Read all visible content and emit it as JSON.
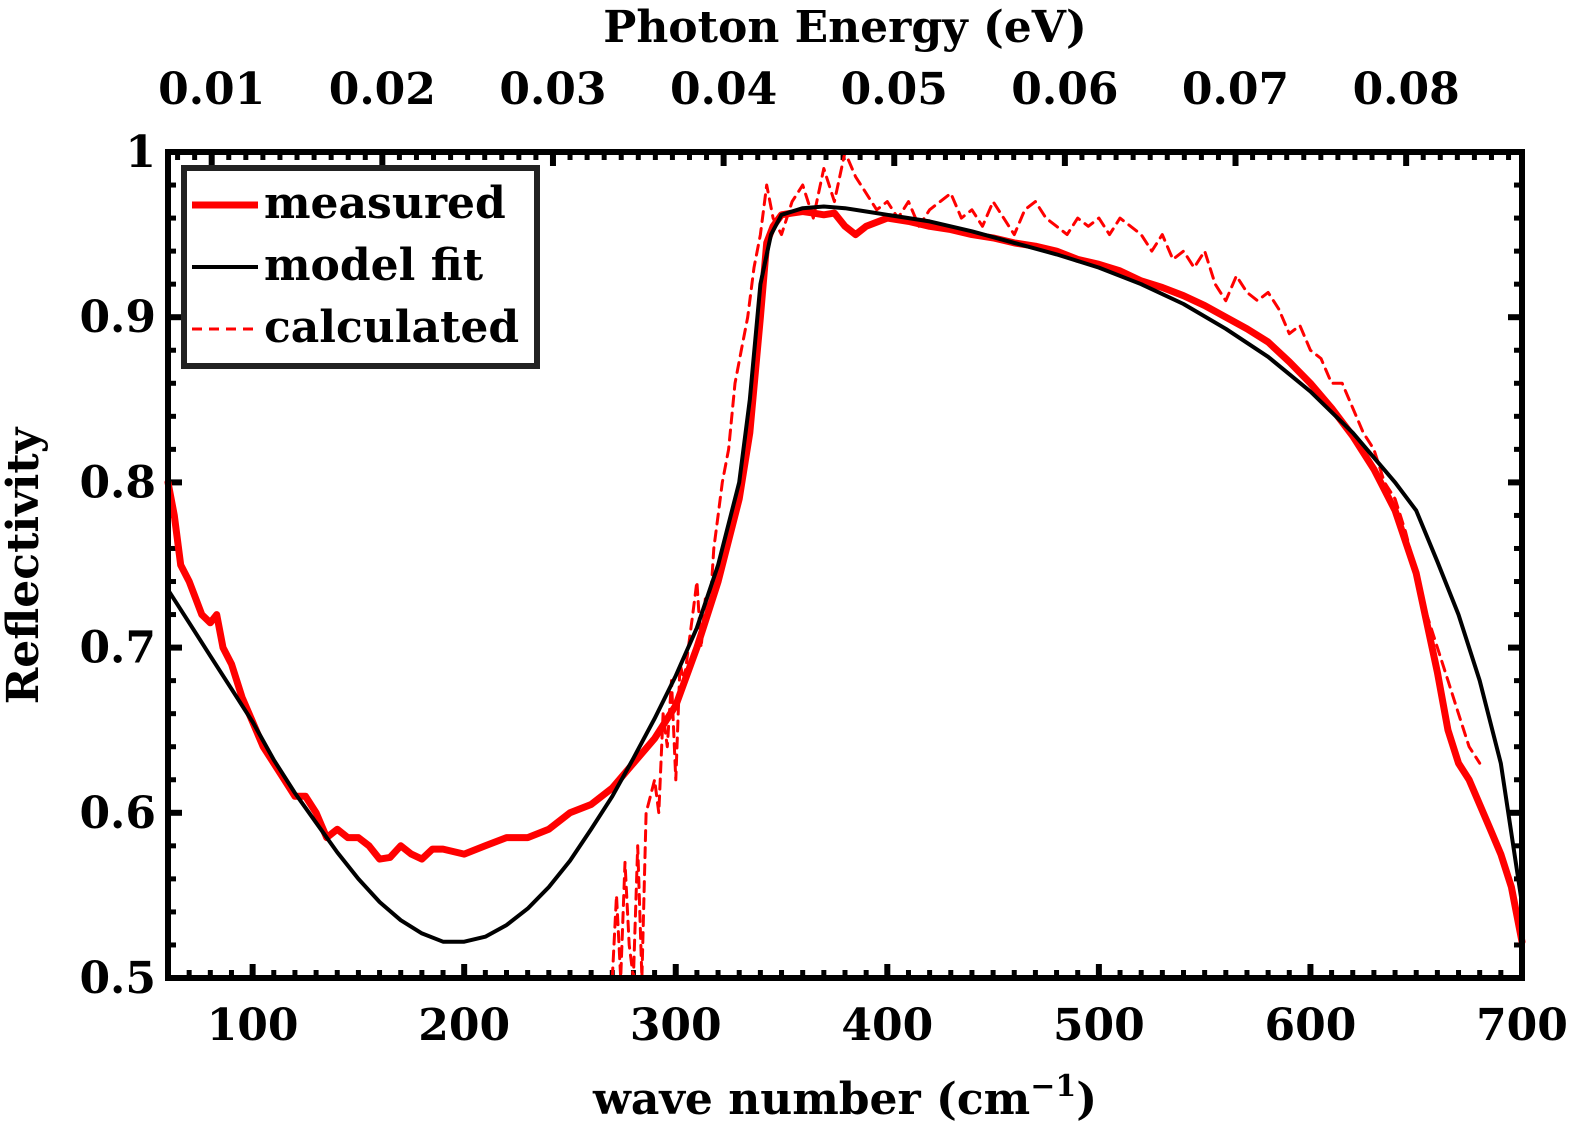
{
  "chart_data": {
    "type": "line",
    "xlabel": "wave number (cm",
    "xlabel_sup": "−1",
    "xlabel_close": ")",
    "ylabel": "Reflectivity",
    "top_axis_label": "Photon Energy (eV)",
    "xlim": [
      60,
      700
    ],
    "ylim": [
      0.5,
      1.0
    ],
    "x_ticks": [
      100,
      200,
      300,
      400,
      500,
      600,
      700
    ],
    "x_tick_labels": [
      "100",
      "200",
      "300",
      "400",
      "500",
      "600",
      "700"
    ],
    "y_ticks": [
      0.5,
      0.6,
      0.7,
      0.8,
      0.9,
      1.0
    ],
    "y_tick_labels": [
      "0.5",
      "0.6",
      "0.7",
      "0.8",
      "0.9",
      "1"
    ],
    "top_ticks_ev": [
      0.01,
      0.02,
      0.03,
      0.04,
      0.05,
      0.06,
      0.07,
      0.08
    ],
    "top_tick_labels": [
      "0.01",
      "0.02",
      "0.03",
      "0.04",
      "0.05",
      "0.06",
      "0.07",
      "0.08"
    ],
    "ev_to_wavenumber": 8065.54,
    "legend_position": "top-left",
    "series": [
      {
        "name": "measured",
        "style": "solid-thick",
        "color": "#ff0000",
        "x": [
          60,
          63,
          66,
          70,
          73,
          76,
          80,
          83,
          86,
          90,
          95,
          100,
          105,
          110,
          115,
          120,
          125,
          130,
          135,
          140,
          145,
          150,
          155,
          160,
          165,
          170,
          175,
          180,
          185,
          190,
          200,
          210,
          220,
          230,
          240,
          250,
          260,
          270,
          280,
          290,
          300,
          310,
          320,
          330,
          335,
          340,
          343,
          346,
          350,
          355,
          360,
          365,
          370,
          375,
          380,
          385,
          390,
          400,
          410,
          420,
          430,
          440,
          450,
          460,
          470,
          480,
          490,
          500,
          510,
          520,
          530,
          540,
          550,
          560,
          570,
          580,
          590,
          600,
          610,
          620,
          630,
          640,
          650,
          655,
          660,
          665,
          670,
          675,
          680,
          685,
          690,
          695,
          700
        ],
        "y": [
          0.8,
          0.78,
          0.75,
          0.74,
          0.73,
          0.72,
          0.715,
          0.72,
          0.7,
          0.69,
          0.67,
          0.655,
          0.64,
          0.63,
          0.62,
          0.61,
          0.61,
          0.6,
          0.585,
          0.59,
          0.585,
          0.585,
          0.58,
          0.572,
          0.573,
          0.58,
          0.575,
          0.572,
          0.578,
          0.578,
          0.575,
          0.58,
          0.585,
          0.585,
          0.59,
          0.6,
          0.605,
          0.615,
          0.63,
          0.645,
          0.665,
          0.7,
          0.74,
          0.79,
          0.83,
          0.9,
          0.945,
          0.955,
          0.962,
          0.963,
          0.964,
          0.963,
          0.962,
          0.963,
          0.955,
          0.95,
          0.955,
          0.96,
          0.958,
          0.955,
          0.953,
          0.95,
          0.948,
          0.945,
          0.943,
          0.94,
          0.935,
          0.932,
          0.928,
          0.922,
          0.918,
          0.913,
          0.907,
          0.9,
          0.893,
          0.885,
          0.873,
          0.86,
          0.845,
          0.828,
          0.808,
          0.783,
          0.745,
          0.715,
          0.685,
          0.65,
          0.63,
          0.62,
          0.605,
          0.59,
          0.575,
          0.555,
          0.522
        ]
      },
      {
        "name": "model fit",
        "style": "solid",
        "color": "#000000",
        "x": [
          60,
          70,
          80,
          90,
          100,
          110,
          120,
          130,
          140,
          150,
          160,
          170,
          180,
          190,
          200,
          210,
          220,
          230,
          240,
          250,
          260,
          270,
          280,
          290,
          300,
          310,
          320,
          330,
          335,
          340,
          345,
          350,
          360,
          370,
          380,
          390,
          400,
          420,
          440,
          460,
          480,
          500,
          520,
          540,
          560,
          580,
          600,
          620,
          640,
          650,
          660,
          670,
          680,
          690,
          700
        ],
        "y": [
          0.735,
          0.715,
          0.695,
          0.675,
          0.655,
          0.632,
          0.612,
          0.594,
          0.576,
          0.56,
          0.546,
          0.535,
          0.527,
          0.522,
          0.522,
          0.525,
          0.532,
          0.542,
          0.555,
          0.571,
          0.59,
          0.61,
          0.633,
          0.657,
          0.683,
          0.712,
          0.75,
          0.8,
          0.85,
          0.92,
          0.95,
          0.962,
          0.966,
          0.967,
          0.966,
          0.964,
          0.962,
          0.958,
          0.952,
          0.945,
          0.938,
          0.93,
          0.92,
          0.908,
          0.893,
          0.876,
          0.855,
          0.83,
          0.8,
          0.783,
          0.752,
          0.72,
          0.68,
          0.63,
          0.545
        ]
      },
      {
        "name": "calculated",
        "style": "dashed",
        "color": "#ff0000",
        "x": [
          270,
          272,
          274,
          276,
          278,
          280,
          282,
          284,
          286,
          288,
          290,
          292,
          294,
          296,
          298,
          300,
          302,
          304,
          306,
          308,
          310,
          312,
          314,
          316,
          318,
          320,
          322,
          325,
          328,
          331,
          334,
          337,
          340,
          343,
          346,
          350,
          355,
          360,
          365,
          370,
          375,
          380,
          385,
          390,
          395,
          400,
          405,
          410,
          415,
          420,
          425,
          430,
          435,
          440,
          445,
          450,
          455,
          460,
          465,
          470,
          475,
          480,
          485,
          490,
          495,
          500,
          505,
          510,
          515,
          520,
          525,
          530,
          535,
          540,
          545,
          550,
          555,
          560,
          565,
          570,
          575,
          580,
          585,
          590,
          595,
          600,
          605,
          610,
          615,
          620,
          625,
          630,
          635,
          640,
          645,
          650,
          655,
          660,
          665,
          670,
          675,
          680
        ],
        "y": [
          0.5,
          0.55,
          0.5,
          0.57,
          0.52,
          0.5,
          0.58,
          0.5,
          0.6,
          0.61,
          0.62,
          0.6,
          0.66,
          0.64,
          0.68,
          0.62,
          0.69,
          0.68,
          0.7,
          0.72,
          0.74,
          0.7,
          0.73,
          0.72,
          0.76,
          0.78,
          0.8,
          0.82,
          0.86,
          0.88,
          0.9,
          0.93,
          0.95,
          0.98,
          0.96,
          0.95,
          0.97,
          0.98,
          0.96,
          0.99,
          0.97,
          1.0,
          0.985,
          0.975,
          0.965,
          0.97,
          0.96,
          0.97,
          0.955,
          0.965,
          0.97,
          0.975,
          0.96,
          0.965,
          0.955,
          0.97,
          0.96,
          0.95,
          0.965,
          0.97,
          0.96,
          0.955,
          0.95,
          0.96,
          0.955,
          0.96,
          0.95,
          0.96,
          0.955,
          0.95,
          0.94,
          0.95,
          0.935,
          0.94,
          0.93,
          0.94,
          0.92,
          0.91,
          0.925,
          0.915,
          0.91,
          0.915,
          0.905,
          0.89,
          0.895,
          0.88,
          0.875,
          0.86,
          0.86,
          0.845,
          0.83,
          0.82,
          0.8,
          0.79,
          0.77,
          0.745,
          0.72,
          0.7,
          0.68,
          0.66,
          0.64,
          0.63
        ]
      }
    ]
  }
}
